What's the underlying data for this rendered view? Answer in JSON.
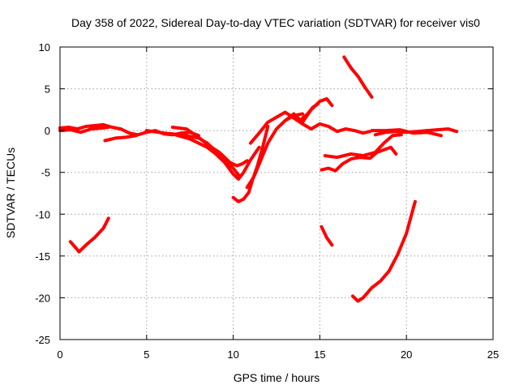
{
  "chart_data": {
    "type": "line",
    "title": "Day 358 of 2022, Sidereal Day-to-day VTEC variation (SDTVAR) for receiver vis0",
    "xlabel": "GPS time / hours",
    "ylabel": "SDTVAR / TECUs",
    "xlim": [
      0,
      25
    ],
    "ylim": [
      -25,
      10
    ],
    "xticks": [
      0,
      5,
      10,
      15,
      20,
      25
    ],
    "yticks": [
      -25,
      -20,
      -15,
      -10,
      -5,
      0,
      5,
      10
    ],
    "grid": true,
    "legend": "none",
    "series_color": "#ff0000",
    "series": [
      {
        "name": "trace-1",
        "x": [
          0.0,
          0.5,
          1.0,
          1.5,
          2.0,
          2.5,
          3.0,
          3.5,
          4.0,
          4.5,
          5.0,
          5.5,
          6.0,
          6.5,
          7.0,
          7.5,
          8.0
        ],
        "y": [
          0.3,
          0.4,
          0.2,
          0.5,
          0.6,
          0.7,
          0.4,
          0.2,
          -0.3,
          -0.5,
          -0.2,
          0.0,
          -0.4,
          -0.5,
          -0.3,
          -0.2,
          -0.6
        ]
      },
      {
        "name": "trace-2",
        "x": [
          0.0,
          0.6,
          1.2,
          1.8,
          2.4,
          2.8
        ],
        "y": [
          0.0,
          0.1,
          -0.2,
          0.2,
          0.3,
          0.4
        ]
      },
      {
        "name": "trace-3",
        "x": [
          2.6,
          3.2,
          3.8,
          4.4
        ],
        "y": [
          -1.2,
          -0.9,
          -0.8,
          -0.6
        ]
      },
      {
        "name": "trace-4",
        "x": [
          5.0,
          6.0,
          7.0,
          8.0,
          8.5,
          9.0,
          9.5,
          10.0,
          10.3
        ],
        "y": [
          0.0,
          -0.3,
          -0.5,
          -0.9,
          -1.5,
          -2.5,
          -3.5,
          -4.5,
          -5.3
        ]
      },
      {
        "name": "trace-5",
        "x": [
          6.5,
          7.5,
          8.5,
          9.0,
          9.5,
          10.0,
          10.3,
          10.6,
          11.0,
          11.5
        ],
        "y": [
          -0.4,
          -1.0,
          -2.0,
          -2.8,
          -3.8,
          -5.2,
          -5.8,
          -5.0,
          -3.5,
          -2.0
        ]
      },
      {
        "name": "trace-6",
        "x": [
          6.5,
          7.3,
          8.0,
          8.6,
          9.2,
          9.8,
          10.2,
          10.5,
          10.8
        ],
        "y": [
          0.4,
          0.2,
          -0.8,
          -1.8,
          -2.6,
          -3.8,
          -4.2,
          -4.0,
          -3.6
        ]
      },
      {
        "name": "trace-7",
        "x": [
          10.0,
          10.3,
          10.6,
          10.9,
          11.1,
          11.4,
          11.7,
          12.0
        ],
        "y": [
          -8.0,
          -8.5,
          -8.2,
          -7.4,
          -6.0,
          -4.2,
          -2.0,
          0.5
        ]
      },
      {
        "name": "trace-8",
        "x": [
          10.8,
          11.2,
          11.6,
          12.0,
          12.5,
          13.0,
          13.5,
          14.0
        ],
        "y": [
          -6.8,
          -5.5,
          -3.5,
          -1.5,
          0.2,
          1.2,
          1.8,
          2.0
        ]
      },
      {
        "name": "trace-9",
        "x": [
          11.0,
          11.5,
          12.0,
          12.5,
          13.0,
          13.5,
          14.0,
          14.5,
          15.0,
          15.5,
          16.0,
          16.5,
          17.0,
          17.5,
          17.9
        ],
        "y": [
          -1.5,
          -0.3,
          1.0,
          1.6,
          2.2,
          1.5,
          0.8,
          0.2,
          0.8,
          0.5,
          -0.1,
          0.2,
          0.0,
          -0.3,
          -0.1
        ]
      },
      {
        "name": "trace-10",
        "x": [
          13.0,
          13.5,
          14.0,
          14.5,
          15.0,
          15.4,
          15.7
        ],
        "y": [
          1.2,
          2.0,
          1.0,
          2.5,
          3.5,
          3.8,
          3.0
        ]
      },
      {
        "name": "trace-11",
        "x": [
          14.0,
          14.3,
          14.6,
          14.9
        ],
        "y": [
          1.5,
          2.0,
          2.8,
          3.2
        ]
      },
      {
        "name": "trace-12",
        "x": [
          16.4,
          16.8,
          17.2,
          17.6,
          18.0
        ],
        "y": [
          8.8,
          7.5,
          6.5,
          5.2,
          4.0
        ]
      },
      {
        "name": "trace-13",
        "x": [
          15.1,
          15.5,
          15.9,
          16.3,
          16.8,
          17.3,
          17.9,
          18.3,
          18.7,
          19.1,
          19.4
        ],
        "y": [
          -4.7,
          -4.5,
          -4.8,
          -4.0,
          -3.4,
          -3.2,
          -3.3,
          -2.6,
          -2.3,
          -2.0,
          -2.8
        ]
      },
      {
        "name": "trace-14",
        "x": [
          15.3,
          16.0,
          16.8,
          17.5,
          18.2,
          18.7,
          19.2,
          19.7
        ],
        "y": [
          -3.0,
          -3.2,
          -2.8,
          -3.0,
          -2.6,
          -1.5,
          -0.6,
          -0.5
        ]
      },
      {
        "name": "trace-15",
        "x": [
          18.2,
          18.8,
          19.4,
          20.0,
          20.6,
          21.2,
          21.8,
          22.4,
          22.9
        ],
        "y": [
          -0.5,
          -0.2,
          -0.1,
          -0.2,
          -0.1,
          0.0,
          0.1,
          0.2,
          -0.1
        ]
      },
      {
        "name": "trace-16",
        "x": [
          18.0,
          18.8,
          19.6,
          20.4,
          21.2,
          22.0
        ],
        "y": [
          0.0,
          0.0,
          0.1,
          -0.3,
          -0.2,
          -0.6
        ]
      },
      {
        "name": "trace-17",
        "x": [
          15.1,
          15.4,
          15.7
        ],
        "y": [
          -11.5,
          -12.8,
          -13.7
        ]
      },
      {
        "name": "trace-18",
        "x": [
          0.6,
          0.9,
          1.1,
          1.5,
          2.0,
          2.5,
          2.8
        ],
        "y": [
          -13.3,
          -14.0,
          -14.5,
          -13.7,
          -12.8,
          -11.7,
          -10.5
        ]
      },
      {
        "name": "trace-19",
        "x": [
          16.9,
          17.2,
          17.5,
          18.0,
          18.5,
          19.0,
          19.5,
          20.0,
          20.5
        ],
        "y": [
          -19.8,
          -20.4,
          -20.0,
          -18.8,
          -18.0,
          -16.8,
          -14.8,
          -12.3,
          -8.5
        ]
      }
    ]
  }
}
